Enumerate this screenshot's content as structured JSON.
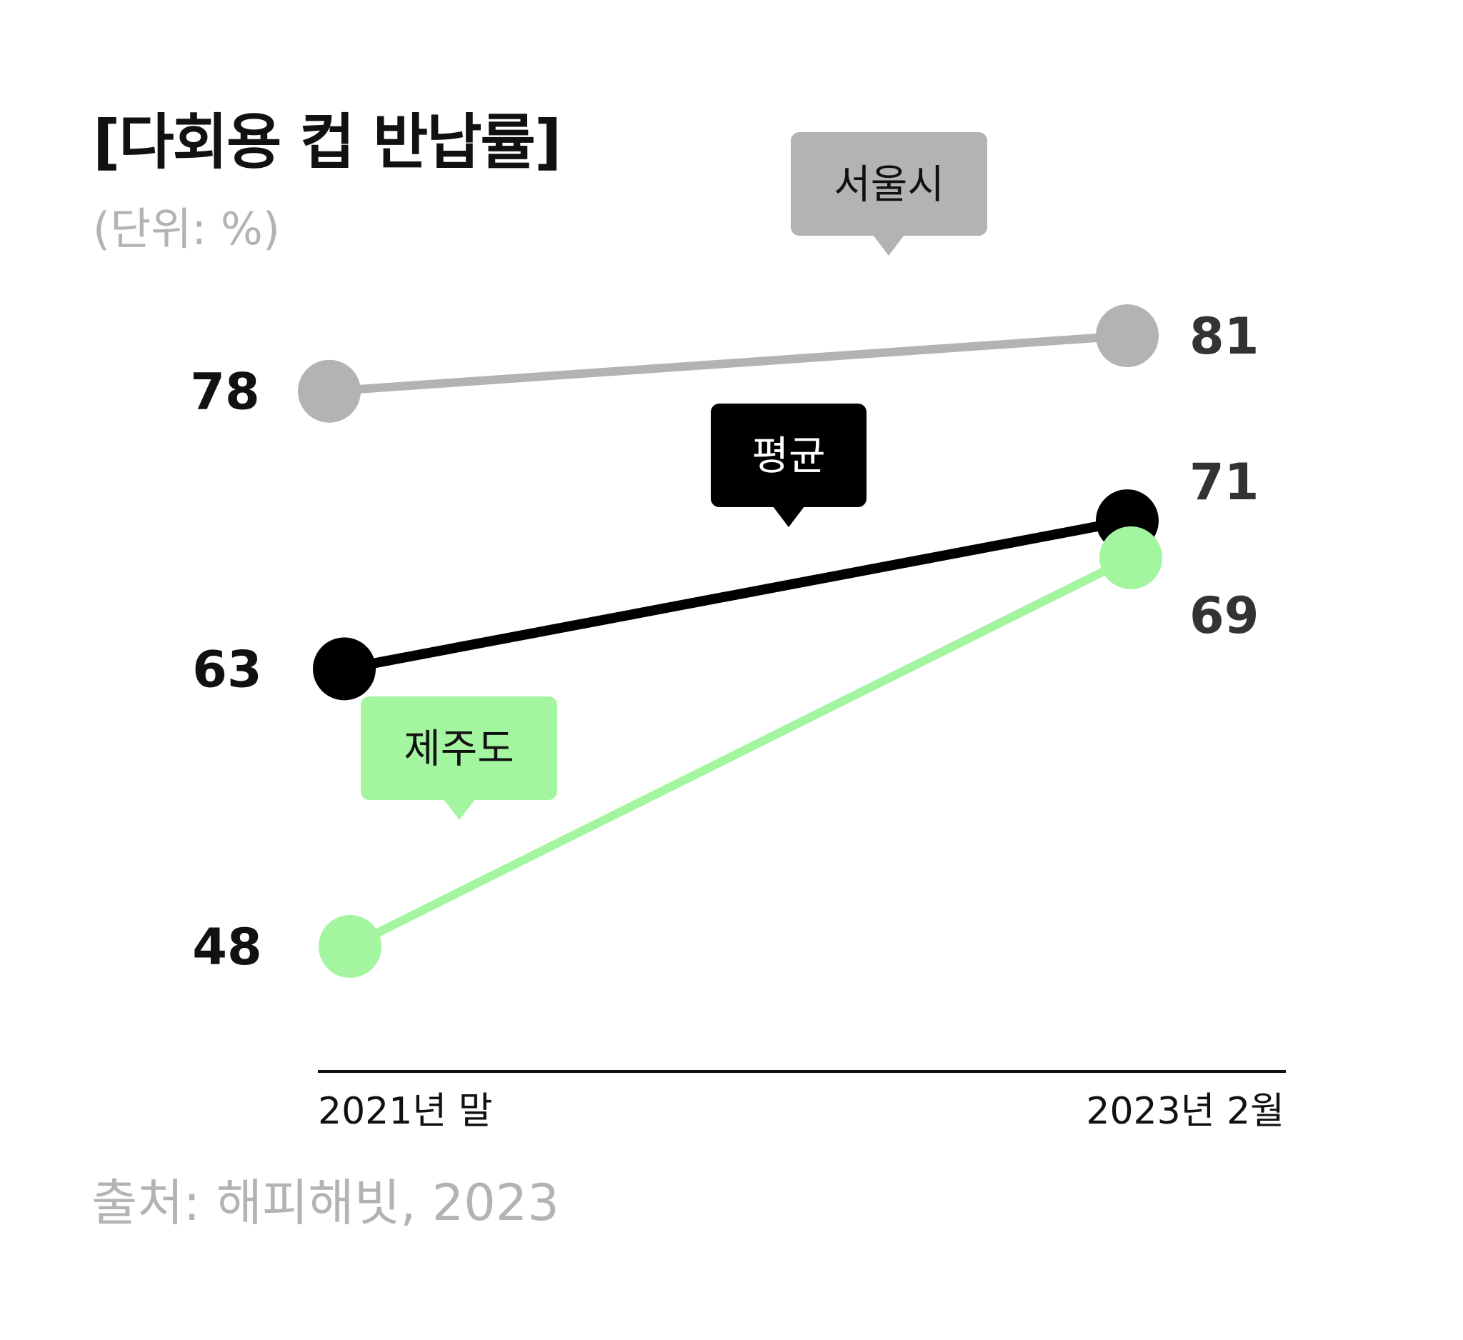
{
  "header": {
    "title": "[다회용 컵 반납률]",
    "unit": "(단위: %)"
  },
  "footer": {
    "source": "출처: 해피해빗, 2023"
  },
  "colors": {
    "seoul": "#b3b3b3",
    "average": "#000000",
    "jeju": "#a3f5a0",
    "value_text": "#222222",
    "muted_text": "#b3b3b3"
  },
  "chart_data": {
    "type": "line",
    "categories": [
      "2021년 말",
      "2023년 2월"
    ],
    "series": [
      {
        "name": "서울시",
        "values": [
          78,
          81
        ]
      },
      {
        "name": "평균",
        "values": [
          63,
          71
        ]
      },
      {
        "name": "제주도",
        "values": [
          48,
          69
        ]
      }
    ],
    "ylim": [
      48,
      81
    ],
    "grid": false,
    "legend": "inline callouts"
  }
}
